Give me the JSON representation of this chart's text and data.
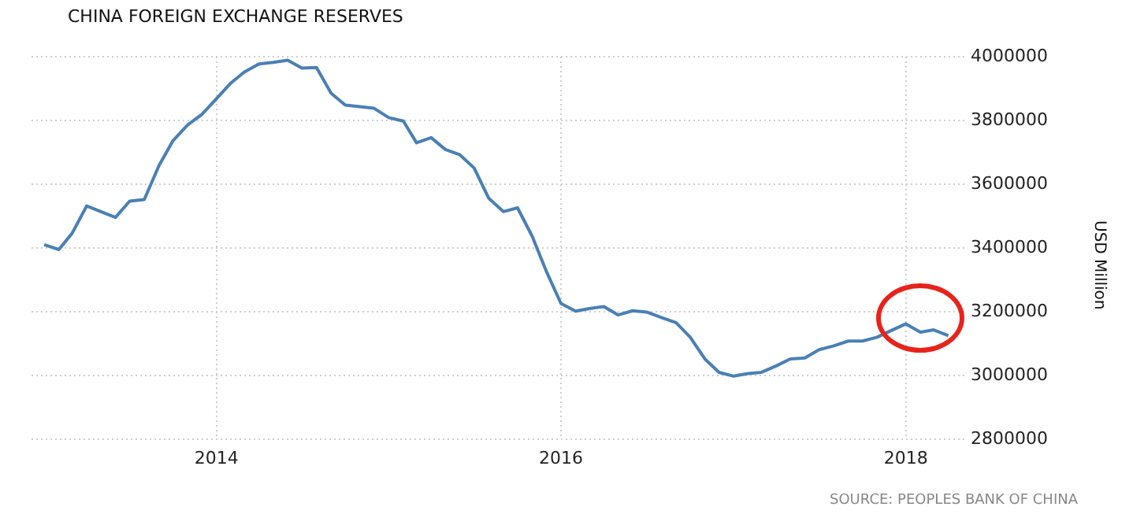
{
  "chart_data": {
    "type": "line",
    "title": "CHINA FOREIGN EXCHANGE RESERVES",
    "ylabel": "USD Million",
    "annotations": [
      "SOURCE: PEOPLES BANK OF CHINA"
    ],
    "x": [
      "2013-01",
      "2013-02",
      "2013-03",
      "2013-04",
      "2013-05",
      "2013-06",
      "2013-07",
      "2013-08",
      "2013-09",
      "2013-10",
      "2013-11",
      "2013-12",
      "2014-01",
      "2014-02",
      "2014-03",
      "2014-04",
      "2014-05",
      "2014-06",
      "2014-07",
      "2014-08",
      "2014-09",
      "2014-10",
      "2014-11",
      "2014-12",
      "2015-01",
      "2015-02",
      "2015-03",
      "2015-04",
      "2015-05",
      "2015-06",
      "2015-07",
      "2015-08",
      "2015-09",
      "2015-10",
      "2015-11",
      "2015-12",
      "2016-01",
      "2016-02",
      "2016-03",
      "2016-04",
      "2016-05",
      "2016-06",
      "2016-07",
      "2016-08",
      "2016-09",
      "2016-10",
      "2016-11",
      "2016-12",
      "2017-01",
      "2017-02",
      "2017-03",
      "2017-04",
      "2017-05",
      "2017-06",
      "2017-07",
      "2017-08",
      "2017-09",
      "2017-10",
      "2017-11",
      "2017-12",
      "2018-01",
      "2018-02",
      "2018-03",
      "2018-04"
    ],
    "series": [
      {
        "color": "#4a80b4",
        "values": [
          3410000,
          3395000,
          3446000,
          3532000,
          3514000,
          3496000,
          3547000,
          3552000,
          3658000,
          3737000,
          3786000,
          3819000,
          3868000,
          3918000,
          3952000,
          3977000,
          3982000,
          3989000,
          3964000,
          3966000,
          3885000,
          3848000,
          3843000,
          3838000,
          3809000,
          3798000,
          3730000,
          3746000,
          3709000,
          3692000,
          3651000,
          3556000,
          3514000,
          3526000,
          3437000,
          3327000,
          3226000,
          3202000,
          3210000,
          3216000,
          3190000,
          3203000,
          3199000,
          3182000,
          3166000,
          3120000,
          3052000,
          3010000,
          2998000,
          3006000,
          3010000,
          3030000,
          3052000,
          3055000,
          3081000,
          3093000,
          3108000,
          3108000,
          3120000,
          3141000,
          3162000,
          3136000,
          3143000,
          3125000
        ]
      }
    ],
    "xlim": [
      "2012-12-05",
      "2018-05-05"
    ],
    "xticks": [
      "2014",
      "2016",
      "2018"
    ],
    "ylim": [
      2800000,
      4000000
    ],
    "yticks": [
      2800000,
      3000000,
      3200000,
      3400000,
      3600000,
      3800000,
      4000000
    ],
    "grid": true,
    "legend": false,
    "marker": "none",
    "line_style": "solid"
  }
}
